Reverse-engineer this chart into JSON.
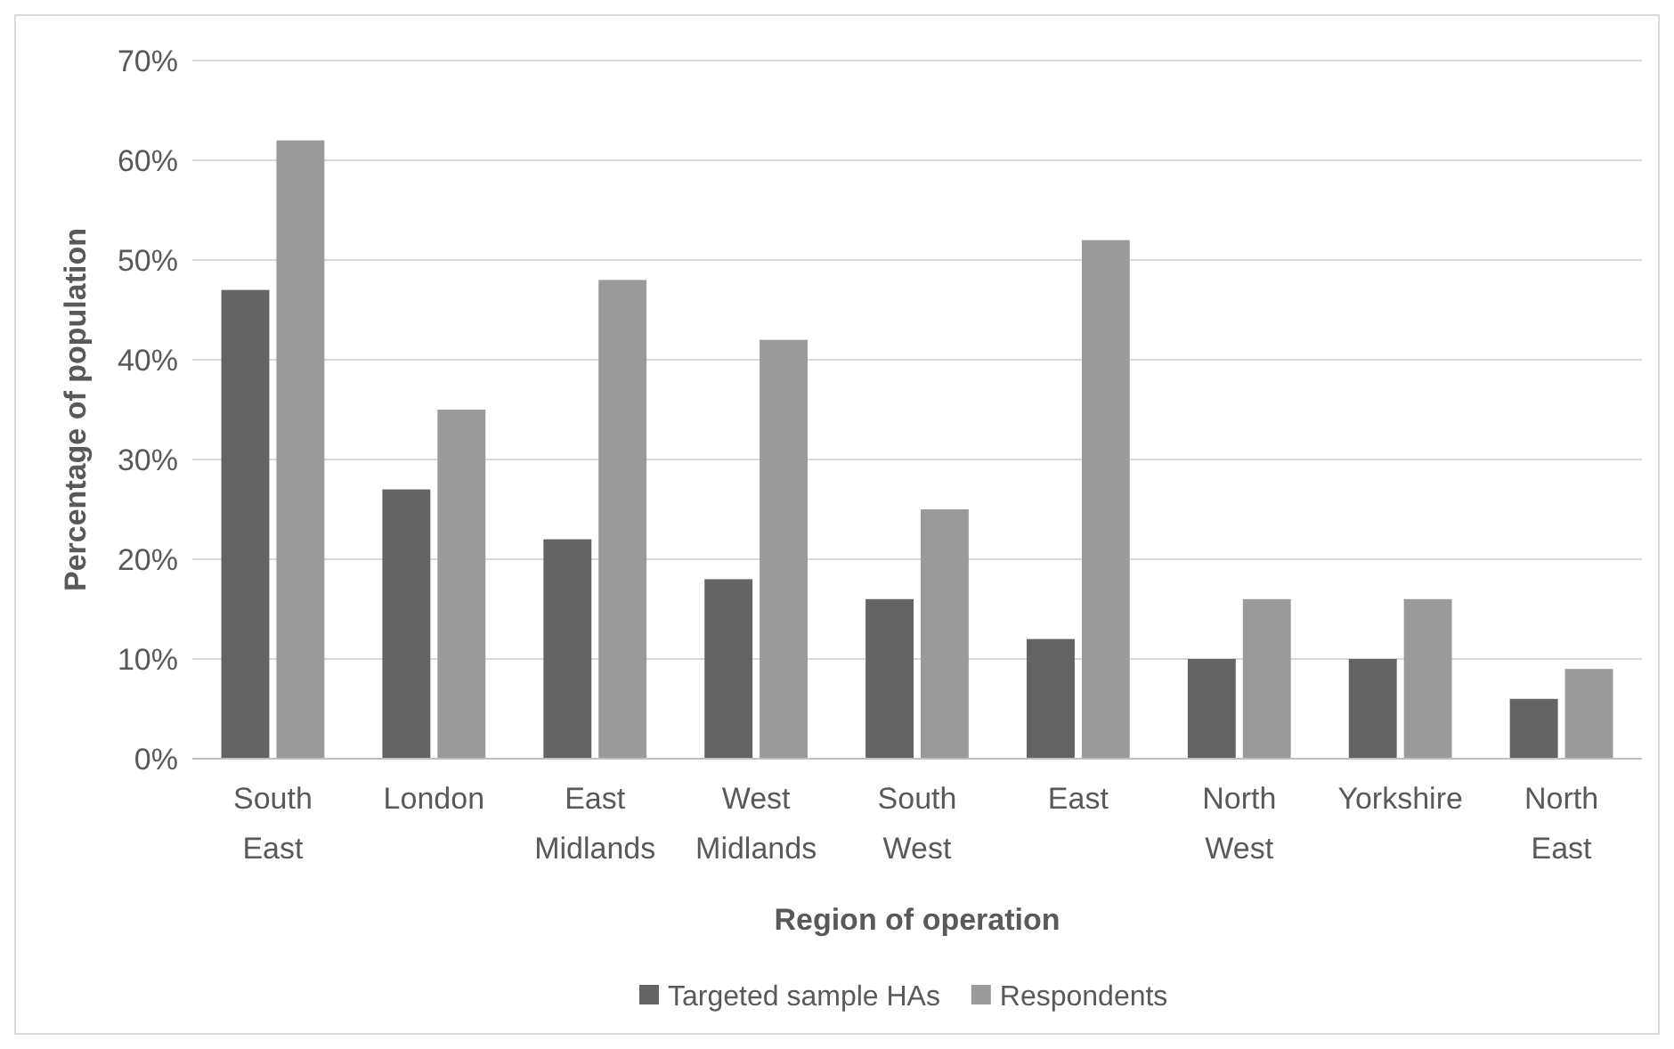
{
  "chart_data": {
    "type": "bar",
    "xlabel": "Region of operation",
    "ylabel": "Percentage of population",
    "categories": [
      "South East",
      "London",
      "East Midlands",
      "West Midlands",
      "South West",
      "East",
      "North West",
      "Yorkshire",
      "North East"
    ],
    "series": [
      {
        "name": "Targeted sample HAs",
        "color": "#646464",
        "values": [
          47,
          27,
          22,
          18,
          16,
          12,
          10,
          10,
          6
        ]
      },
      {
        "name": "Respondents",
        "color": "#9a9a9a",
        "values": [
          62,
          35,
          48,
          42,
          25,
          52,
          16,
          16,
          9
        ]
      }
    ],
    "ylim": [
      0,
      70
    ],
    "yticks": [
      {
        "value": 0,
        "label": "0%"
      },
      {
        "value": 10,
        "label": "10%"
      },
      {
        "value": 20,
        "label": "20%"
      },
      {
        "value": 30,
        "label": "30%"
      },
      {
        "value": 40,
        "label": "40%"
      },
      {
        "value": 50,
        "label": "50%"
      },
      {
        "value": 60,
        "label": "60%"
      },
      {
        "value": 70,
        "label": "70%"
      }
    ],
    "grid": "y",
    "legend": "bottom"
  }
}
